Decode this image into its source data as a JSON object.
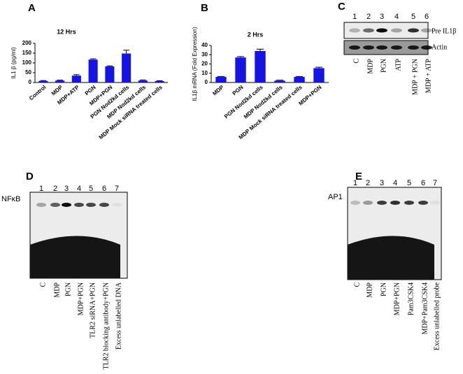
{
  "chart_data": [
    {
      "type": "bar",
      "panel": "A",
      "title": "12 Hrs",
      "y_label": "IL1 β (pg/ml)",
      "color": "#1414e6",
      "categories": [
        "Control",
        "MDP",
        "MDP+ATP",
        "PGN",
        "MDP+PGN",
        "PGN Nod2kd cells",
        "MDP Nod2kd cells",
        "MDP Mock siRNA treated cells"
      ],
      "values": [
        8,
        10,
        35,
        117,
        82,
        148,
        10,
        7
      ],
      "errors": [
        2,
        2,
        5,
        4,
        3,
        17,
        3,
        2
      ],
      "ylim": [
        0,
        200
      ],
      "yticks": [
        0,
        50,
        100,
        150,
        200
      ]
    },
    {
      "type": "bar",
      "panel": "B",
      "title": "2 Hrs",
      "y_label": "IL1β mRNA (Fold Expression)",
      "color": "#1414e6",
      "categories": [
        "MDP",
        "PGN",
        "PGN Nod2kd cells",
        "MDP Nod2kd cells",
        "MDP Mock siRNA treated cells",
        "MDP+PGN"
      ],
      "values": [
        6,
        27,
        34,
        2,
        6,
        15.5
      ],
      "errors": [
        0.5,
        1,
        2,
        0.5,
        0.5,
        1
      ],
      "ylim": [
        0,
        40
      ],
      "yticks": [
        0,
        10,
        20,
        30,
        40
      ]
    }
  ],
  "gels": [
    {
      "panel": "C",
      "lanes": [
        "1",
        "2",
        "3",
        "4",
        "5",
        "6"
      ],
      "bands": [
        "Pre IL1β",
        "Actin"
      ],
      "lane_labels": [
        "C",
        "MDP",
        "PGN",
        "ATP",
        "MDP + PGN",
        "MDP + ATP"
      ]
    },
    {
      "panel": "D",
      "lanes": [
        "1",
        "2",
        "3",
        "4",
        "5",
        "6",
        "7"
      ],
      "bands": [
        "NFκB"
      ],
      "lane_labels": [
        "C",
        "MDP",
        "PGN",
        "MDP+PGN",
        "TLR2 siRNA+PGN",
        "TLR2 blocking antibody+PGN",
        "Excess unlabelled DNA"
      ]
    },
    {
      "panel": "E",
      "lanes": [
        "1",
        "2",
        "3",
        "4",
        "5",
        "6",
        "7"
      ],
      "bands": [
        "AP1"
      ],
      "lane_labels": [
        "C",
        "MDP",
        "PGN",
        "MDP+PGN",
        "Pam3CSK4",
        "MDP+Pam3CSK4",
        "Excess unlabelled probe"
      ]
    }
  ]
}
